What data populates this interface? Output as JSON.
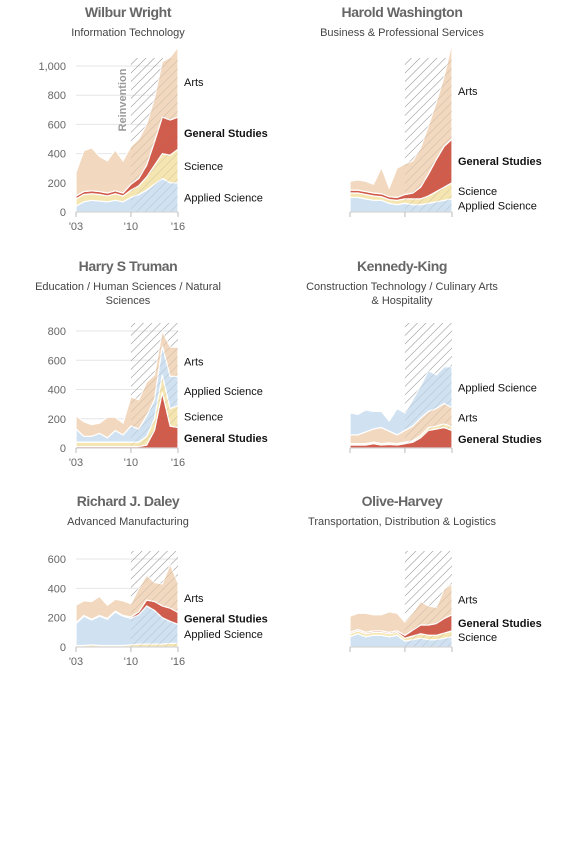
{
  "colors": {
    "applied_science": "#c9def0",
    "science": "#f4e3a6",
    "general_studies": "#cc4533",
    "arts": "#f0d3b5",
    "white_line": "#ffffff",
    "hatch": "#999999"
  },
  "chart_data": [
    {
      "type": "area",
      "title": "Wilbur Wright",
      "subtitle": "Information Technology",
      "x": [
        2003,
        2004,
        2005,
        2006,
        2007,
        2008,
        2009,
        2010,
        2011,
        2012,
        2013,
        2014,
        2015,
        2016
      ],
      "xticks": [
        "'03",
        "'10",
        "'16"
      ],
      "yticks": [
        0,
        200,
        400,
        600,
        800,
        "1,000"
      ],
      "ylim": [
        0,
        1000
      ],
      "annotation": "Reinvention",
      "series": [
        {
          "name": "Applied Science",
          "values": [
            40,
            70,
            80,
            75,
            70,
            80,
            70,
            100,
            120,
            150,
            190,
            230,
            200,
            200
          ]
        },
        {
          "name": "Science",
          "values": [
            50,
            50,
            45,
            45,
            40,
            45,
            40,
            50,
            60,
            90,
            130,
            170,
            190,
            230
          ]
        },
        {
          "name": "General Studies",
          "values": [
            20,
            20,
            20,
            20,
            20,
            20,
            20,
            40,
            50,
            80,
            160,
            250,
            240,
            220
          ]
        },
        {
          "name": "Arts",
          "values": [
            160,
            280,
            295,
            240,
            220,
            280,
            220,
            260,
            270,
            280,
            300,
            380,
            430,
            480
          ]
        }
      ],
      "label_order": [
        "Arts",
        "General Studies",
        "Science",
        "Applied Science"
      ]
    },
    {
      "type": "area",
      "title": "Harold Washington",
      "subtitle": "Business & Professional Services",
      "x": [
        2003,
        2004,
        2005,
        2006,
        2007,
        2008,
        2009,
        2010,
        2011,
        2012,
        2013,
        2014,
        2015,
        2016
      ],
      "ylim": [
        0,
        1000
      ],
      "series": [
        {
          "name": "Applied Science",
          "values": [
            100,
            100,
            90,
            80,
            80,
            60,
            50,
            60,
            50,
            50,
            60,
            70,
            80,
            90
          ]
        },
        {
          "name": "Science",
          "values": [
            30,
            30,
            30,
            30,
            25,
            25,
            30,
            30,
            40,
            40,
            50,
            70,
            90,
            110
          ]
        },
        {
          "name": "General Studies",
          "values": [
            20,
            20,
            20,
            20,
            20,
            20,
            20,
            30,
            40,
            80,
            150,
            220,
            280,
            300
          ]
        },
        {
          "name": "Arts",
          "values": [
            60,
            70,
            70,
            60,
            180,
            60,
            200,
            210,
            220,
            270,
            330,
            390,
            480,
            660
          ]
        }
      ],
      "label_order": [
        "Arts",
        "General Studies",
        "Science",
        "Applied Science"
      ]
    },
    {
      "type": "area",
      "title": "Harry S Truman",
      "subtitle": "Education / Human Sciences / Natural Sciences",
      "x": [
        2003,
        2004,
        2005,
        2006,
        2007,
        2008,
        2009,
        2010,
        2011,
        2012,
        2013,
        2014,
        2015,
        2016
      ],
      "xticks": [
        "'03",
        "'10",
        "'16"
      ],
      "yticks": [
        0,
        200,
        400,
        600,
        800
      ],
      "ylim": [
        0,
        800
      ],
      "series": [
        {
          "name": "General Studies",
          "values": [
            10,
            10,
            10,
            10,
            10,
            10,
            10,
            10,
            10,
            20,
            120,
            380,
            150,
            140
          ]
        },
        {
          "name": "Science",
          "values": [
            30,
            30,
            30,
            30,
            30,
            30,
            30,
            30,
            30,
            60,
            80,
            120,
            120,
            150
          ]
        },
        {
          "name": "Applied Science",
          "values": [
            90,
            40,
            40,
            60,
            30,
            80,
            50,
            110,
            90,
            140,
            130,
            200,
            220,
            200
          ]
        },
        {
          "name": "Arts",
          "values": [
            90,
            100,
            80,
            70,
            140,
            90,
            80,
            200,
            200,
            230,
            170,
            100,
            200,
            200
          ]
        }
      ],
      "label_order": [
        "Arts",
        "Applied Science",
        "Science",
        "General Studies"
      ]
    },
    {
      "type": "area",
      "title": "Kennedy-King",
      "subtitle": "Construction Technology / Culinary Arts & Hospitality",
      "x": [
        2003,
        2004,
        2005,
        2006,
        2007,
        2008,
        2009,
        2010,
        2011,
        2012,
        2013,
        2014,
        2015,
        2016
      ],
      "ylim": [
        0,
        800
      ],
      "series": [
        {
          "name": "General Studies",
          "values": [
            20,
            20,
            20,
            30,
            20,
            25,
            20,
            30,
            40,
            70,
            120,
            130,
            140,
            120
          ]
        },
        {
          "name": "Science",
          "values": [
            10,
            10,
            10,
            10,
            10,
            10,
            10,
            10,
            10,
            15,
            20,
            20,
            25,
            25
          ]
        },
        {
          "name": "Arts",
          "values": [
            60,
            60,
            80,
            90,
            110,
            80,
            60,
            80,
            100,
            120,
            110,
            120,
            140,
            130
          ]
        },
        {
          "name": "Applied Science",
          "values": [
            150,
            140,
            150,
            120,
            110,
            70,
            180,
            120,
            180,
            220,
            280,
            230,
            250,
            280
          ]
        }
      ],
      "label_order": [
        "Applied Science",
        "Arts",
        "General Studies"
      ]
    },
    {
      "type": "area",
      "title": "Richard J. Daley",
      "subtitle": "Advanced Manufacturing",
      "x": [
        2003,
        2004,
        2005,
        2006,
        2007,
        2008,
        2009,
        2010,
        2011,
        2012,
        2013,
        2014,
        2015,
        2016
      ],
      "xticks": [
        "'03",
        "'10",
        "'16"
      ],
      "yticks": [
        0,
        200,
        400,
        600
      ],
      "ylim": [
        0,
        600
      ],
      "series": [
        {
          "name": "Science",
          "values": [
            10,
            10,
            15,
            10,
            10,
            10,
            10,
            15,
            20,
            20,
            20,
            20,
            25,
            25
          ]
        },
        {
          "name": "Applied Science",
          "values": [
            150,
            200,
            170,
            200,
            180,
            230,
            200,
            180,
            200,
            260,
            230,
            180,
            150,
            130
          ]
        },
        {
          "name": "General Studies",
          "values": [
            5,
            5,
            5,
            5,
            5,
            5,
            5,
            10,
            20,
            40,
            60,
            80,
            90,
            80
          ]
        },
        {
          "name": "Arts",
          "values": [
            120,
            100,
            120,
            130,
            90,
            80,
            100,
            90,
            160,
            170,
            130,
            150,
            300,
            200
          ]
        }
      ],
      "label_order": [
        "Arts",
        "General Studies",
        "Applied Science"
      ]
    },
    {
      "type": "area",
      "title": "Olive-Harvey",
      "subtitle": "Transportation, Distribution & Logistics",
      "x": [
        2003,
        2004,
        2005,
        2006,
        2007,
        2008,
        2009,
        2010,
        2011,
        2012,
        2013,
        2014,
        2015,
        2016
      ],
      "ylim": [
        0,
        600
      ],
      "series": [
        {
          "name": "Applied Science",
          "values": [
            70,
            90,
            70,
            80,
            80,
            70,
            80,
            40,
            50,
            60,
            50,
            50,
            60,
            70
          ]
        },
        {
          "name": "Science",
          "values": [
            20,
            20,
            20,
            20,
            20,
            20,
            20,
            20,
            25,
            30,
            30,
            30,
            35,
            40
          ]
        },
        {
          "name": "General Studies",
          "values": [
            10,
            10,
            10,
            10,
            10,
            10,
            10,
            20,
            40,
            60,
            70,
            80,
            100,
            110
          ]
        },
        {
          "name": "Arts",
          "values": [
            110,
            110,
            130,
            110,
            110,
            140,
            120,
            90,
            120,
            160,
            130,
            110,
            200,
            210
          ]
        }
      ],
      "label_order": [
        "Arts",
        "General Studies",
        "Science"
      ]
    }
  ]
}
